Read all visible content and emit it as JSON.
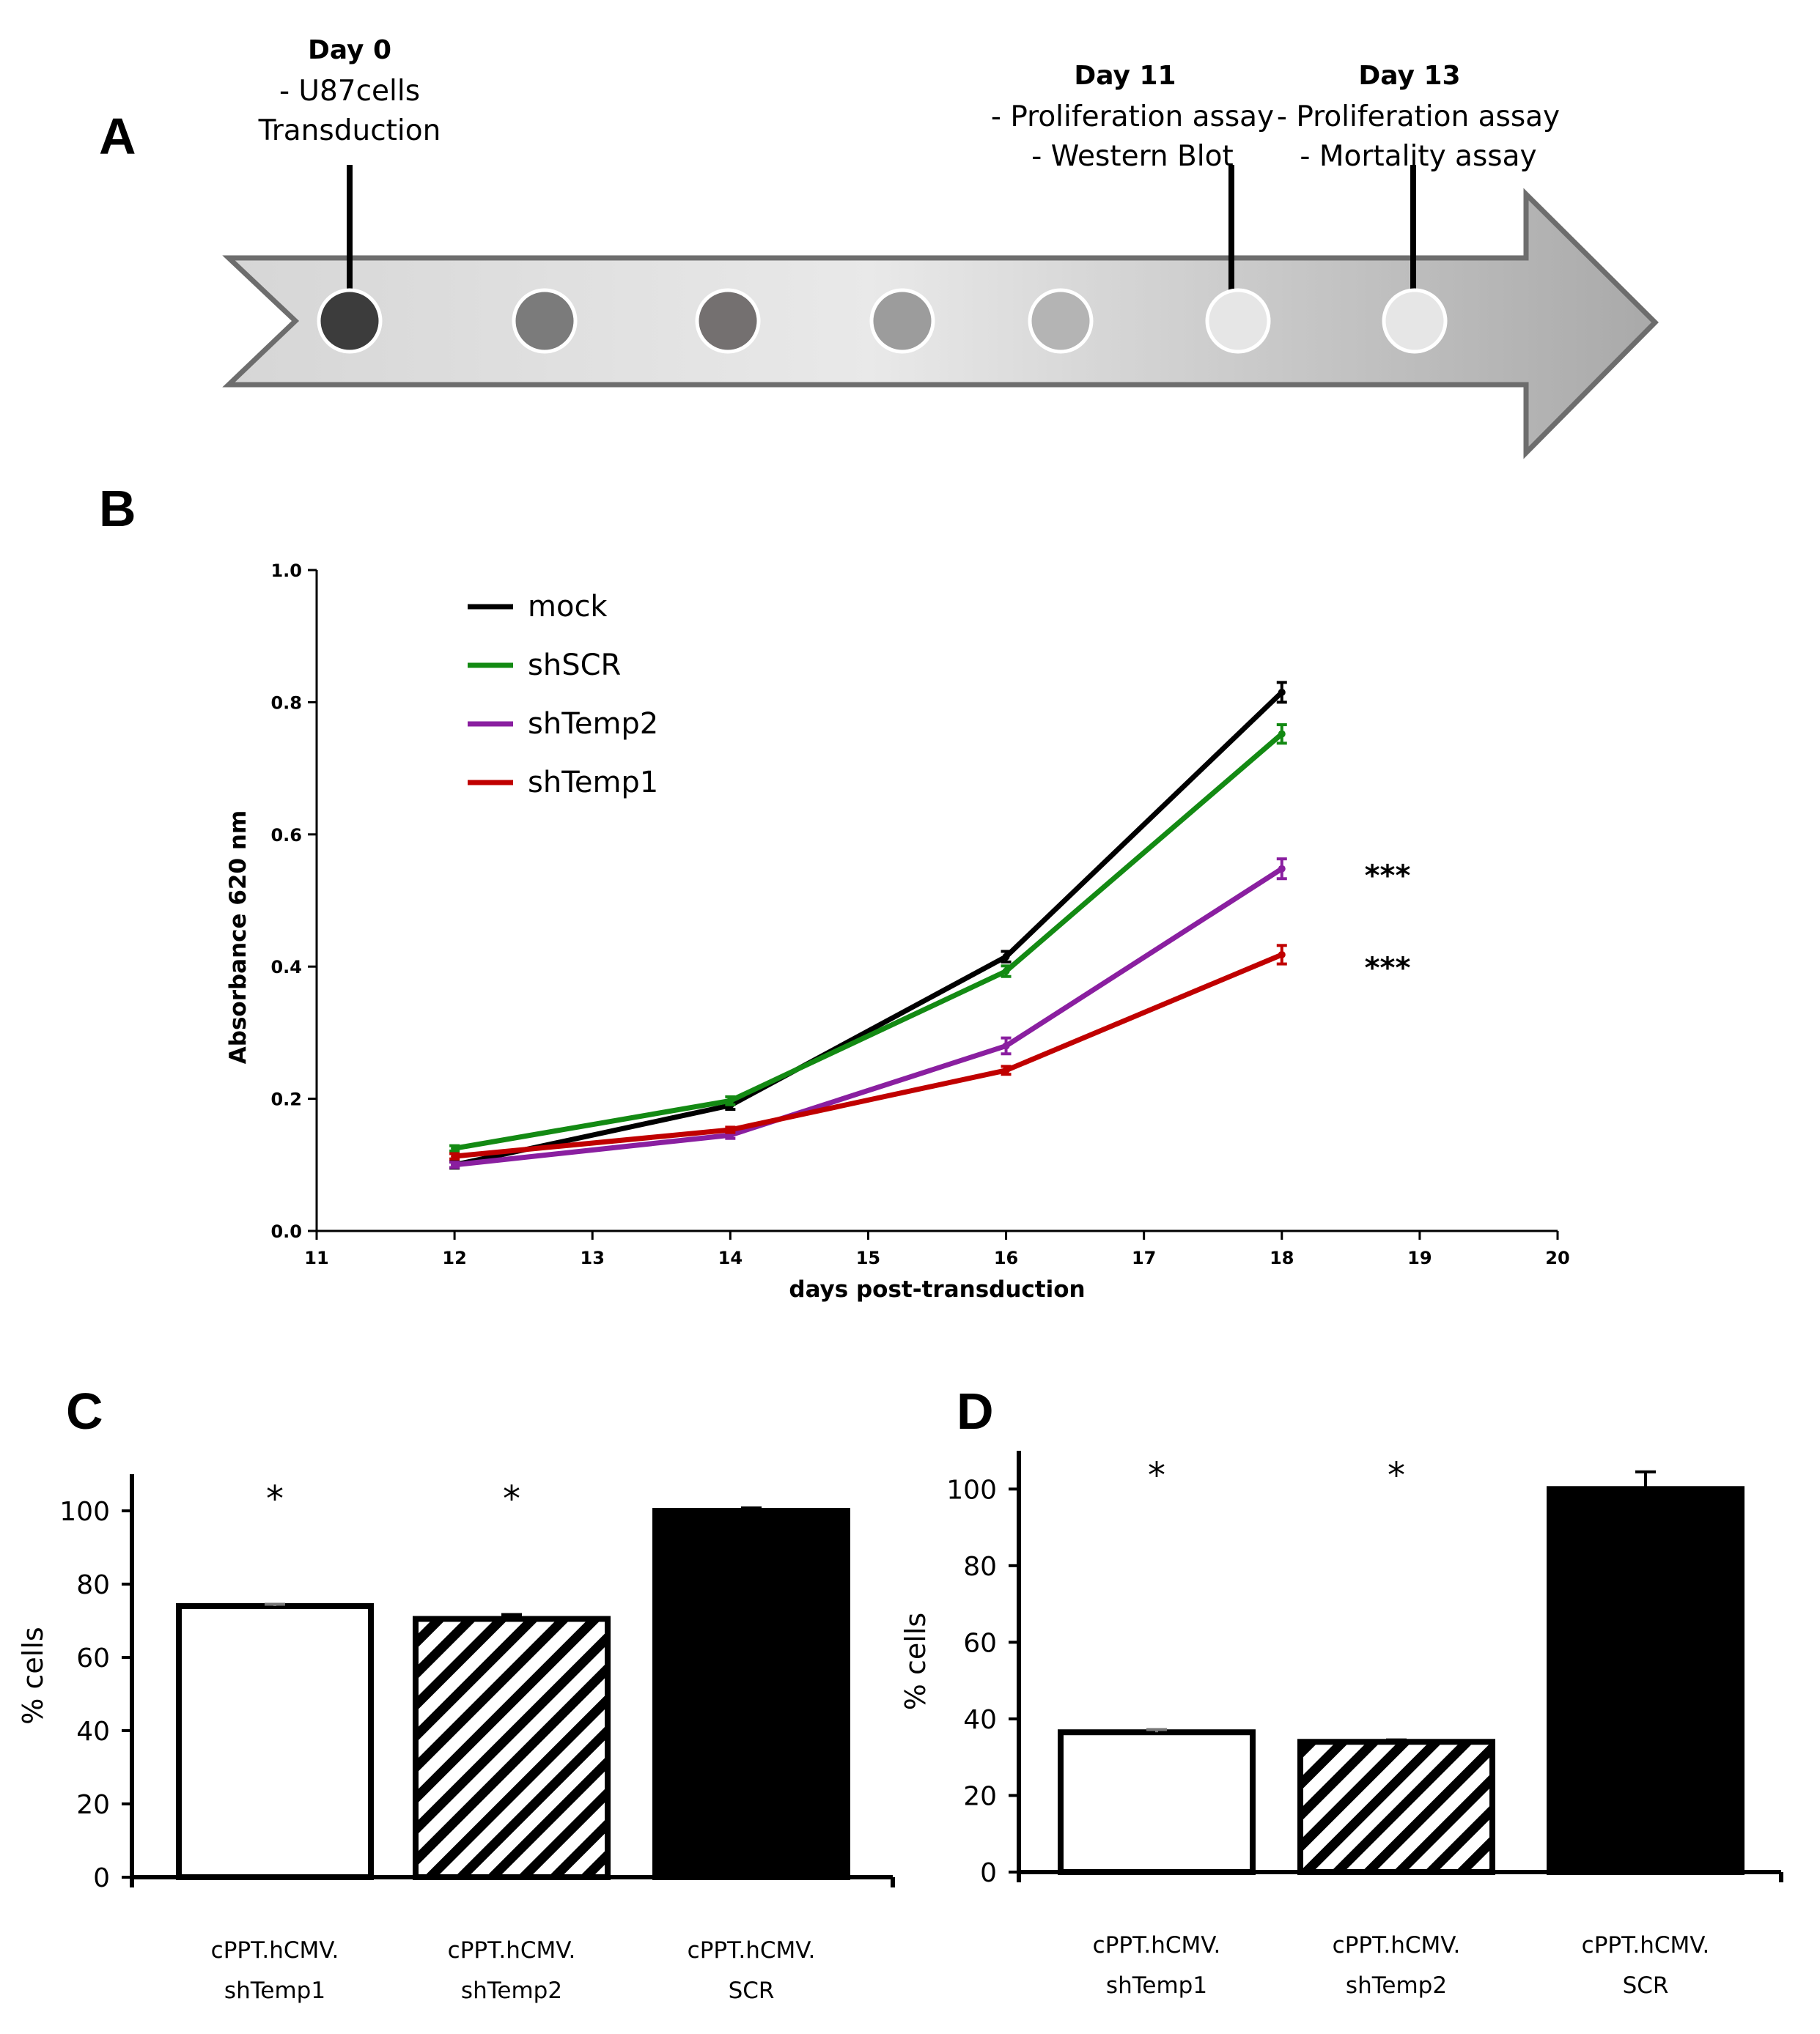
{
  "panels": {
    "a": "A",
    "b": "B",
    "c": "C",
    "d": "D"
  },
  "timeline": {
    "events": [
      {
        "day": "Day 0",
        "lines": [
          "- U87cells",
          "Transduction"
        ]
      },
      {
        "day": "Day 11",
        "lines": [
          "- Proliferation assay",
          "- Western Blot"
        ]
      },
      {
        "day": "Day 13",
        "lines": [
          "- Proliferation assay",
          "- Mortality assay"
        ]
      }
    ],
    "dot_colors": [
      "#3c3c3c",
      "#7b7b7b",
      "#747070",
      "#9c9c9c",
      "#b4b4b4",
      "#e6e6e6",
      "#e6e6e6"
    ]
  },
  "chart_data": [
    {
      "type": "line",
      "title": "",
      "xlabel": "days post-transduction",
      "ylabel": "Absorbance 620 nm",
      "xlim": [
        11,
        20
      ],
      "ylim": [
        0.0,
        1.0
      ],
      "x_ticks": [
        "11",
        "12",
        "13",
        "14",
        "15",
        "16",
        "17",
        "18",
        "19",
        "20"
      ],
      "y_ticks": [
        "0.0",
        "0.2",
        "0.4",
        "0.6",
        "0.8",
        "1.0"
      ],
      "legend_position": "top-left",
      "series": [
        {
          "name": "mock",
          "color": "#000000",
          "x": [
            12,
            14,
            16,
            18
          ],
          "y": [
            0.1,
            0.19,
            0.415,
            0.815
          ],
          "err": [
            0.005,
            0.006,
            0.008,
            0.015
          ]
        },
        {
          "name": "shSCR",
          "color": "#138a13",
          "x": [
            12,
            14,
            16,
            18
          ],
          "y": [
            0.125,
            0.197,
            0.393,
            0.752
          ],
          "err": [
            0.004,
            0.006,
            0.008,
            0.014
          ]
        },
        {
          "name": "shTemp2",
          "color": "#8a1fa0",
          "x": [
            12,
            14,
            16,
            18
          ],
          "y": [
            0.1,
            0.145,
            0.28,
            0.548
          ],
          "err": [
            0.004,
            0.005,
            0.012,
            0.015
          ]
        },
        {
          "name": "shTemp1",
          "color": "#c00000",
          "x": [
            12,
            14,
            16,
            18
          ],
          "y": [
            0.113,
            0.153,
            0.243,
            0.418
          ],
          "err": [
            0.004,
            0.004,
            0.006,
            0.014
          ]
        }
      ],
      "annotations": [
        {
          "text": "***",
          "x": 18.6,
          "y": 0.545
        },
        {
          "text": "***",
          "x": 18.6,
          "y": 0.405
        }
      ]
    },
    {
      "type": "bar",
      "ylabel": "% cells",
      "ylim": [
        0,
        110
      ],
      "y_ticks": [
        "0",
        "20",
        "40",
        "60",
        "80",
        "100"
      ],
      "categories": [
        [
          "cPPT.hCMV.",
          "shTemp1"
        ],
        [
          "cPPT.hCMV.",
          "shTemp2"
        ],
        [
          "cPPT.hCMV.",
          "SCR"
        ]
      ],
      "values": [
        74,
        70.5,
        100
      ],
      "errors": [
        0.5,
        1.2,
        0.8
      ],
      "patterns": [
        "white",
        "hatch",
        "black"
      ],
      "significance": [
        "*",
        "*",
        ""
      ]
    },
    {
      "type": "bar",
      "ylabel": "% cells",
      "ylim": [
        0,
        110
      ],
      "y_ticks": [
        "0",
        "20",
        "40",
        "60",
        "80",
        "100"
      ],
      "categories": [
        [
          "cPPT.hCMV.",
          "shTemp1"
        ],
        [
          "cPPT.hCMV.",
          "shTemp2"
        ],
        [
          "cPPT.hCMV.",
          "SCR"
        ]
      ],
      "values": [
        36.5,
        34,
        100
      ],
      "errors": [
        0.7,
        0.5,
        4.5
      ],
      "patterns": [
        "white",
        "hatch",
        "black"
      ],
      "significance": [
        "*",
        "*",
        ""
      ]
    }
  ]
}
